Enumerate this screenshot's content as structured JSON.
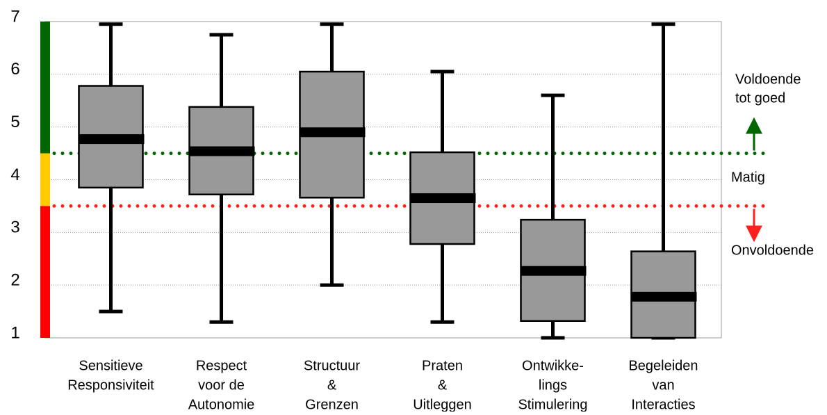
{
  "chart_data": {
    "type": "box",
    "categories": [
      [
        "Sensitieve",
        "Responsiviteit"
      ],
      [
        "Respect",
        "voor de",
        "Autonomie"
      ],
      [
        "Structuur",
        "&",
        "Grenzen"
      ],
      [
        "Praten",
        "&",
        "Uitleggen"
      ],
      [
        "Ontwikke-",
        "lings",
        "Stimulering"
      ],
      [
        "Begeleiden",
        "van",
        "Interacties"
      ]
    ],
    "boxes": [
      {
        "min": 1.5,
        "q1": 3.85,
        "median": 4.77,
        "q3": 5.78,
        "max": 6.95
      },
      {
        "min": 1.3,
        "q1": 3.72,
        "median": 4.54,
        "q3": 5.38,
        "max": 6.75
      },
      {
        "min": 2.0,
        "q1": 3.66,
        "median": 4.9,
        "q3": 6.05,
        "max": 6.95
      },
      {
        "min": 1.3,
        "q1": 2.78,
        "median": 3.65,
        "q3": 4.52,
        "max": 6.05
      },
      {
        "min": 1.0,
        "q1": 1.32,
        "median": 2.27,
        "q3": 3.24,
        "max": 5.6
      },
      {
        "min": 1.0,
        "q1": 1.0,
        "median": 1.78,
        "q3": 2.64,
        "max": 6.95
      }
    ],
    "box_color": "#999999",
    "ylim": [
      1,
      7
    ],
    "yticks": [
      1,
      2,
      3,
      4,
      5,
      6,
      7
    ],
    "grid": true,
    "zones": [
      {
        "from": 4.5,
        "to": 7,
        "color": "#006600"
      },
      {
        "from": 3.5,
        "to": 4.5,
        "color": "#ffcc00"
      },
      {
        "from": 1,
        "to": 3.5,
        "color": "#ff0000"
      }
    ],
    "reference_lines": [
      {
        "value": 4.5,
        "color": "#006600"
      },
      {
        "value": 3.5,
        "color": "#ff2020"
      }
    ],
    "annotations": {
      "good": [
        "Voldoende",
        "tot goed"
      ],
      "mid": "Matig",
      "bad": "Onvoldoende"
    }
  }
}
